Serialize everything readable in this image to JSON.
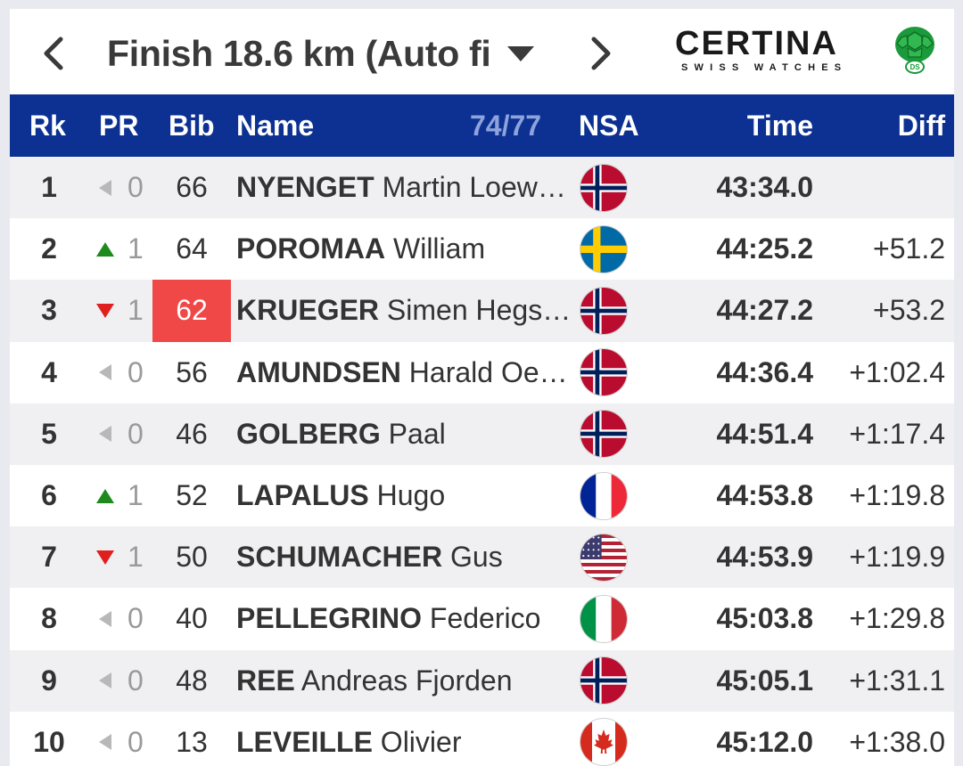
{
  "header": {
    "split_label": "Finish 18.6 km (Auto fi",
    "prev_icon": "chevron-left-icon",
    "next_icon": "chevron-right-icon",
    "dropdown_icon": "caret-down-icon"
  },
  "sponsor": {
    "name": "CERTINA",
    "tagline": "SWISS WATCHES",
    "emblem_text": "DS",
    "emblem_color": "#1a9a3a"
  },
  "table": {
    "columns": {
      "rank": "Rk",
      "pr": "PR",
      "bib": "Bib",
      "name": "Name",
      "count": "74/77",
      "nsa": "NSA",
      "time": "Time",
      "diff": "Diff"
    },
    "colors": {
      "header_bg": "#0c3192",
      "count_text": "#8ea3dc",
      "up": "#1e8a1e",
      "down": "#e01f1f",
      "bib_highlight": "#f04747"
    },
    "rows": [
      {
        "rank": "1",
        "pr_dir": "same",
        "pr": "0",
        "bib": "66",
        "bib_highlight": false,
        "last": "NYENGET",
        "first": "Martin Loewstroem",
        "nsa": "NOR",
        "time": "43:34.0",
        "diff": ""
      },
      {
        "rank": "2",
        "pr_dir": "up",
        "pr": "1",
        "bib": "64",
        "bib_highlight": false,
        "last": "POROMAA",
        "first": "William",
        "nsa": "SWE",
        "time": "44:25.2",
        "diff": "+51.2"
      },
      {
        "rank": "3",
        "pr_dir": "down",
        "pr": "1",
        "bib": "62",
        "bib_highlight": true,
        "last": "KRUEGER",
        "first": "Simen Hegstad",
        "nsa": "NOR",
        "time": "44:27.2",
        "diff": "+53.2"
      },
      {
        "rank": "4",
        "pr_dir": "same",
        "pr": "0",
        "bib": "56",
        "bib_highlight": false,
        "last": "AMUNDSEN",
        "first": "Harald Oestberg",
        "nsa": "NOR",
        "time": "44:36.4",
        "diff": "+1:02.4"
      },
      {
        "rank": "5",
        "pr_dir": "same",
        "pr": "0",
        "bib": "46",
        "bib_highlight": false,
        "last": "GOLBERG",
        "first": "Paal",
        "nsa": "NOR",
        "time": "44:51.4",
        "diff": "+1:17.4"
      },
      {
        "rank": "6",
        "pr_dir": "up",
        "pr": "1",
        "bib": "52",
        "bib_highlight": false,
        "last": "LAPALUS",
        "first": "Hugo",
        "nsa": "FRA",
        "time": "44:53.8",
        "diff": "+1:19.8"
      },
      {
        "rank": "7",
        "pr_dir": "down",
        "pr": "1",
        "bib": "50",
        "bib_highlight": false,
        "last": "SCHUMACHER",
        "first": "Gus",
        "nsa": "USA",
        "time": "44:53.9",
        "diff": "+1:19.9"
      },
      {
        "rank": "8",
        "pr_dir": "same",
        "pr": "0",
        "bib": "40",
        "bib_highlight": false,
        "last": "PELLEGRINO",
        "first": "Federico",
        "nsa": "ITA",
        "time": "45:03.8",
        "diff": "+1:29.8"
      },
      {
        "rank": "9",
        "pr_dir": "same",
        "pr": "0",
        "bib": "48",
        "bib_highlight": false,
        "last": "REE",
        "first": "Andreas Fjorden",
        "nsa": "NOR",
        "time": "45:05.1",
        "diff": "+1:31.1"
      },
      {
        "rank": "10",
        "pr_dir": "same",
        "pr": "0",
        "bib": "13",
        "bib_highlight": false,
        "last": "LEVEILLE",
        "first": "Olivier",
        "nsa": "CAN",
        "time": "45:12.0",
        "diff": "+1:38.0"
      }
    ]
  }
}
